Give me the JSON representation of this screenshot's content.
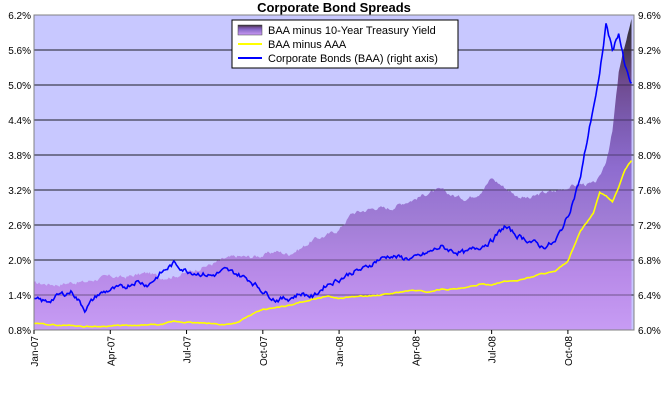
{
  "chart_data": {
    "type": "area",
    "title": "Corporate Bond Spreads",
    "xlabel": "",
    "ylabel": "",
    "x_tick_labels": [
      "Jan-07",
      "Apr-07",
      "Jul-07",
      "Oct-07",
      "Jan-08",
      "Apr-08",
      "Jul-08",
      "Oct-08"
    ],
    "y_left": {
      "min": 0.8,
      "max": 6.2,
      "ticks": [
        0.8,
        1.4,
        2.0,
        2.6,
        3.2,
        3.8,
        4.4,
        5.0,
        5.6,
        6.2
      ],
      "tick_labels": [
        "0.8%",
        "1.4%",
        "2.0%",
        "2.6%",
        "3.2%",
        "3.8%",
        "4.4%",
        "5.0%",
        "5.6%",
        "6.2%"
      ]
    },
    "y_right": {
      "min": 6.0,
      "max": 9.6,
      "ticks": [
        6.0,
        6.4,
        6.8,
        7.2,
        7.6,
        8.0,
        8.4,
        8.8,
        9.2,
        9.6
      ],
      "tick_labels": [
        "6.0%",
        "6.4%",
        "6.8%",
        "7.2%",
        "7.6%",
        "8.0%",
        "8.4%",
        "8.8%",
        "9.2%",
        "9.6%"
      ]
    },
    "grid": true,
    "legend_position": "top-center",
    "x_months": [
      0,
      0.5,
      1,
      1.5,
      2,
      2.5,
      3,
      3.5,
      4,
      4.5,
      5,
      5.5,
      6,
      6.5,
      7,
      7.5,
      8,
      8.5,
      9,
      9.5,
      10,
      10.5,
      11,
      11.5,
      12,
      12.5,
      13,
      13.5,
      14,
      14.5,
      15,
      15.5,
      16,
      16.5,
      17,
      17.5,
      18,
      18.5,
      19,
      19.5,
      20,
      20.5,
      21,
      21.5,
      22,
      22.25,
      22.5,
      22.75,
      23,
      23.25,
      23.5
    ],
    "series": [
      {
        "name": "BAA minus 10-Year Treasury Yield",
        "color": "#8e6ccf",
        "axis": "left",
        "values": [
          1.6,
          1.59,
          1.58,
          1.62,
          1.62,
          1.68,
          1.72,
          1.7,
          1.74,
          1.78,
          1.7,
          1.72,
          1.78,
          1.86,
          1.93,
          2.02,
          2.06,
          2.05,
          2.08,
          2.15,
          2.1,
          2.2,
          2.35,
          2.42,
          2.52,
          2.8,
          2.85,
          2.9,
          2.88,
          2.98,
          3.05,
          3.15,
          3.2,
          3.1,
          3.05,
          3.15,
          3.4,
          3.25,
          3.1,
          3.05,
          3.15,
          3.18,
          3.25,
          3.3,
          3.3,
          3.4,
          3.7,
          4.2,
          5.2,
          5.7,
          6.1
        ]
      },
      {
        "name": "BAA minus AAA",
        "color": "#ffff00",
        "axis": "left",
        "values": [
          0.91,
          0.9,
          0.88,
          0.88,
          0.86,
          0.86,
          0.87,
          0.88,
          0.87,
          0.89,
          0.89,
          0.95,
          0.93,
          0.92,
          0.91,
          0.89,
          0.93,
          1.05,
          1.15,
          1.18,
          1.22,
          1.28,
          1.33,
          1.38,
          1.34,
          1.37,
          1.38,
          1.39,
          1.42,
          1.46,
          1.48,
          1.45,
          1.5,
          1.5,
          1.52,
          1.58,
          1.58,
          1.63,
          1.65,
          1.7,
          1.77,
          1.8,
          1.98,
          2.5,
          2.8,
          3.15,
          3.1,
          3.0,
          3.25,
          3.55,
          3.7
        ]
      },
      {
        "name": "Corporate Bonds (BAA) (right axis)",
        "color": "#0000ff",
        "axis": "right",
        "values": [
          6.34,
          6.32,
          6.4,
          6.44,
          6.24,
          6.4,
          6.46,
          6.48,
          6.56,
          6.52,
          6.65,
          6.76,
          6.68,
          6.65,
          6.62,
          6.68,
          6.64,
          6.57,
          6.45,
          6.35,
          6.36,
          6.42,
          6.38,
          6.52,
          6.58,
          6.66,
          6.7,
          6.8,
          6.85,
          6.82,
          6.82,
          6.88,
          6.95,
          6.9,
          6.88,
          6.95,
          7.02,
          7.18,
          7.08,
          7.02,
          6.95,
          7.0,
          7.3,
          7.75,
          8.55,
          8.9,
          9.5,
          9.2,
          9.4,
          9.0,
          8.8
        ]
      }
    ]
  }
}
